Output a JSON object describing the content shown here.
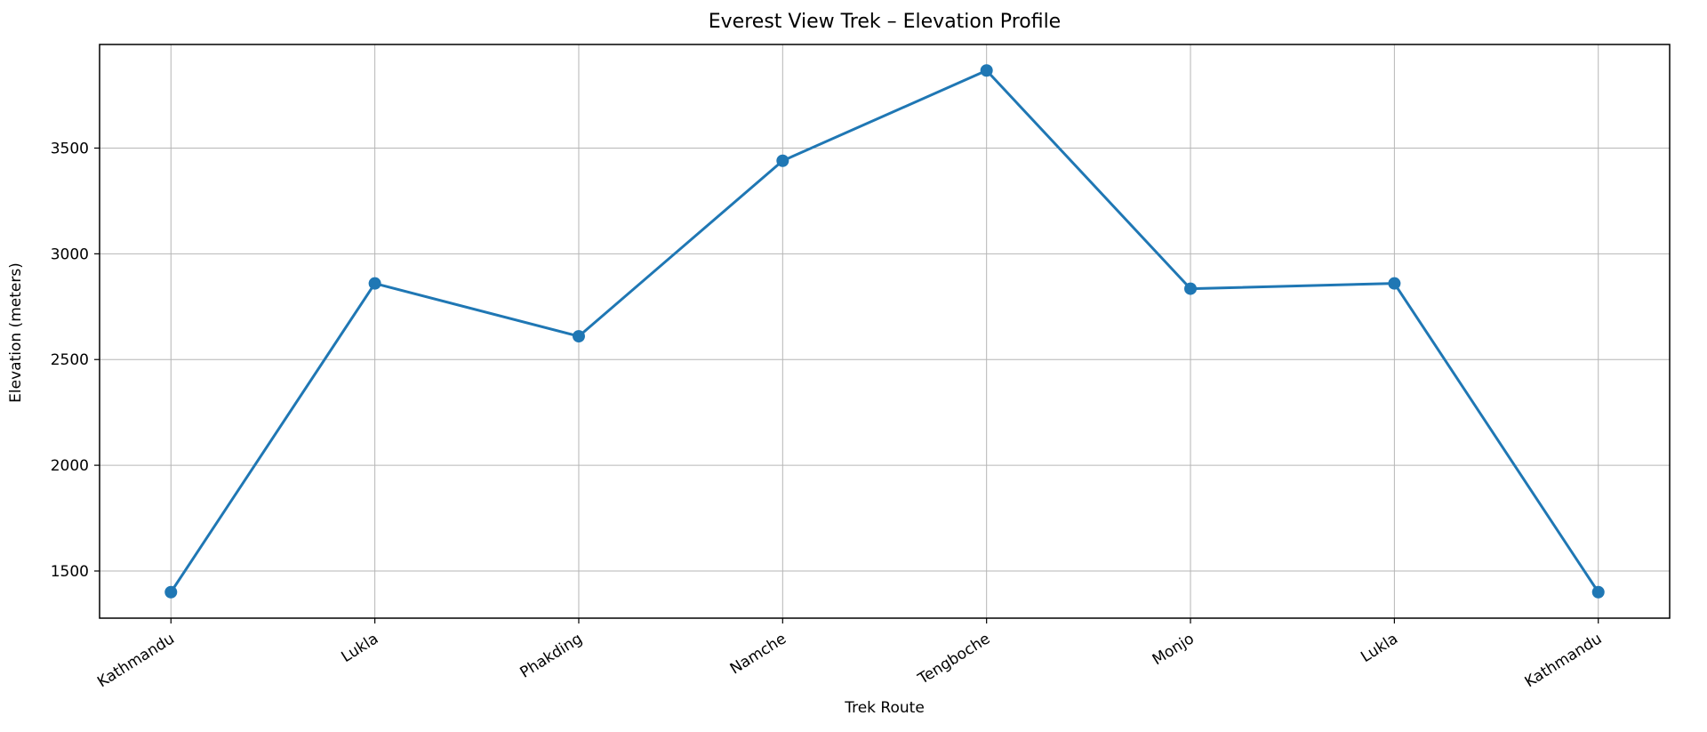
{
  "chart_data": {
    "type": "line",
    "title": "Everest View Trek – Elevation Profile",
    "xlabel": "Trek Route",
    "ylabel": "Elevation (meters)",
    "categories": [
      "Kathmandu",
      "Lukla",
      "Phakding",
      "Namche",
      "Tengboche",
      "Monjo",
      "Lukla",
      "Kathmandu"
    ],
    "values": [
      1400,
      2860,
      2610,
      3440,
      3867,
      2835,
      2860,
      1400
    ],
    "yticks": [
      1500,
      2000,
      2500,
      3000,
      3500
    ],
    "ylim": [
      1277,
      3990
    ],
    "line_color": "#1f77b4",
    "marker": "circle",
    "grid": true,
    "grid_color": "#b6b6b6",
    "spine_color": "#000000",
    "legend": "none"
  }
}
